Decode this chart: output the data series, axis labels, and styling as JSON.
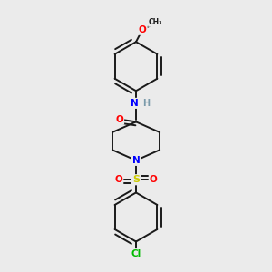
{
  "background_color": "#ebebeb",
  "bond_color": "#1a1a1a",
  "atom_colors": {
    "O": "#ff0000",
    "N": "#0000ff",
    "S": "#cccc00",
    "Cl": "#00bb00",
    "C": "#1a1a1a",
    "H": "#7a9aaa"
  },
  "figsize": [
    3.0,
    3.0
  ],
  "dpi": 100
}
